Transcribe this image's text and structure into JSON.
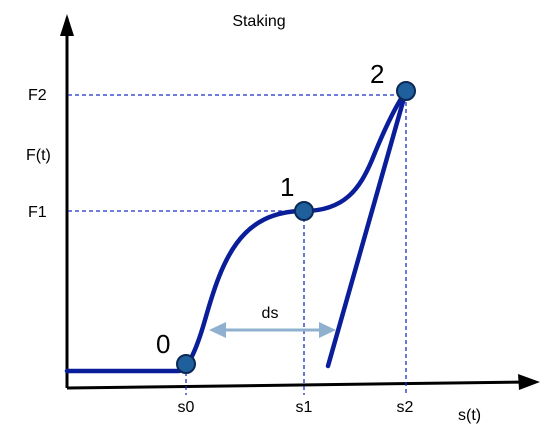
{
  "title": "Staking",
  "axes": {
    "x_label": "s(t)",
    "y_label": "F(t)",
    "x_ticks": [
      "s0",
      "s1",
      "s2"
    ],
    "y_ticks": [
      "F1",
      "F2"
    ]
  },
  "points": [
    {
      "label": "0"
    },
    {
      "label": "1"
    },
    {
      "label": "2"
    }
  ],
  "annotation": {
    "label": "ds"
  },
  "colors": {
    "curve": "#0a1e9a",
    "point_fill": "#1e5f9c",
    "point_stroke": "#0a2a55",
    "guide": "#1a2fc4",
    "ds_arrow": "#8fb1cf",
    "axis": "#000000"
  }
}
